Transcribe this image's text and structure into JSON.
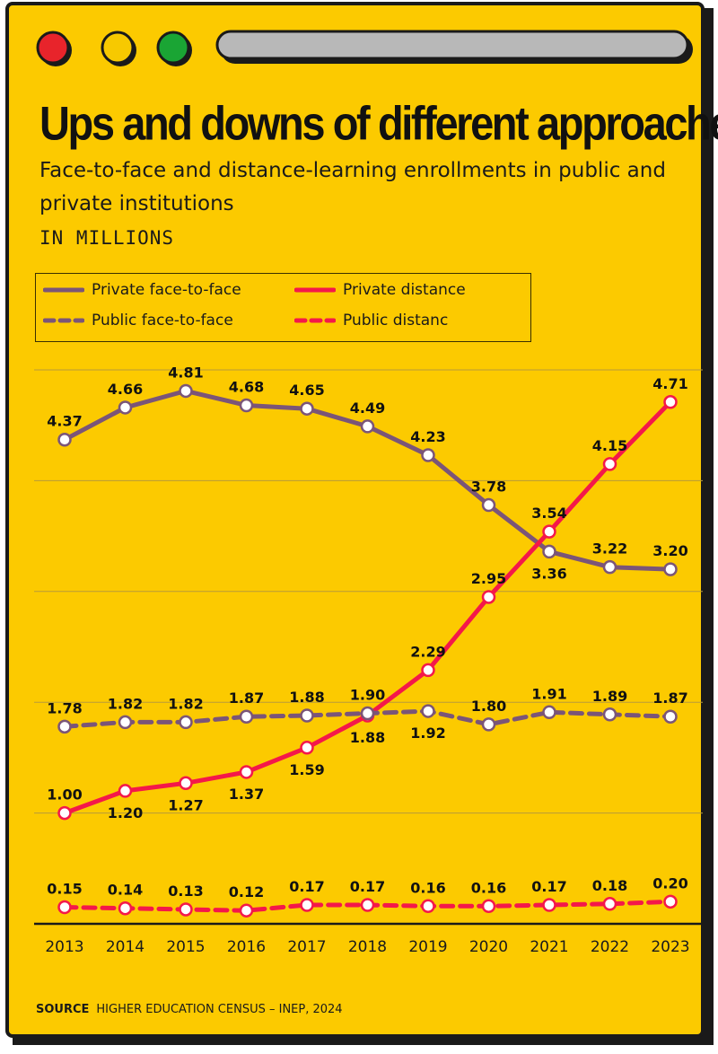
{
  "window": {
    "traffic_lights": [
      "#e8242b",
      "#f7c900",
      "#1aa534"
    ],
    "background": "#fcca00"
  },
  "title": "Ups and downs of different approaches",
  "subtitle": "Face-to-face and distance-learning enrollments in public and private institutions",
  "unit": "IN MILLIONS",
  "source": {
    "label": "SOURCE",
    "text": "HIGHER EDUCATION CENSUS – INEP, 2024"
  },
  "chart_data": {
    "type": "line",
    "x": [
      "2013",
      "2014",
      "2015",
      "2016",
      "2017",
      "2018",
      "2019",
      "2020",
      "2021",
      "2022",
      "2023"
    ],
    "ylim": [
      0,
      5
    ],
    "grid": true,
    "legend": "top-left",
    "series": [
      {
        "name": "Private face-to-face",
        "color": "#7b5578",
        "style": "solid",
        "values": [
          4.37,
          4.66,
          4.81,
          4.68,
          4.65,
          4.49,
          4.23,
          3.78,
          3.36,
          3.22,
          3.2
        ],
        "labels": [
          "4.37",
          "4.66",
          "4.81",
          "4.68",
          "4.65",
          "4.49",
          "4.23",
          "3.78",
          "3.36",
          "3.22",
          "3.20"
        ],
        "label_pos": [
          "above",
          "above",
          "above",
          "above",
          "above",
          "above",
          "above",
          "above",
          "below",
          "above",
          "above"
        ]
      },
      {
        "name": "Private distance",
        "color": "#f4184a",
        "style": "solid",
        "values": [
          1.0,
          1.2,
          1.27,
          1.37,
          1.59,
          1.88,
          2.29,
          2.95,
          3.54,
          4.15,
          4.71
        ],
        "labels": [
          "1.00",
          "1.20",
          "1.27",
          "1.37",
          "1.59",
          "1.88",
          "2.29",
          "2.95",
          "3.54",
          "4.15",
          "4.71"
        ],
        "label_pos": [
          "above",
          "below",
          "below",
          "below",
          "below",
          "below",
          "above",
          "above",
          "above",
          "above",
          "above"
        ]
      },
      {
        "name": "Public face-to-face",
        "color": "#7b5578",
        "style": "dashed",
        "values": [
          1.78,
          1.82,
          1.82,
          1.87,
          1.88,
          1.9,
          1.92,
          1.8,
          1.91,
          1.89,
          1.87
        ],
        "labels": [
          "1.78",
          "1.82",
          "1.82",
          "1.87",
          "1.88",
          "1.90",
          "1.92",
          "1.80",
          "1.91",
          "1.89",
          "1.87"
        ],
        "label_pos": [
          "above",
          "above",
          "above",
          "above",
          "above",
          "above",
          "below",
          "above",
          "above",
          "above",
          "above"
        ]
      },
      {
        "name": "Public distanc",
        "color": "#f4184a",
        "style": "dashed",
        "values": [
          0.15,
          0.14,
          0.13,
          0.12,
          0.17,
          0.17,
          0.16,
          0.16,
          0.17,
          0.18,
          0.2
        ],
        "labels": [
          "0.15",
          "0.14",
          "0.13",
          "0.12",
          "0.17",
          "0.17",
          "0.16",
          "0.16",
          "0.17",
          "0.18",
          "0.20"
        ],
        "label_pos": [
          "above",
          "above",
          "above",
          "above",
          "above",
          "above",
          "above",
          "above",
          "above",
          "above",
          "above"
        ]
      }
    ]
  }
}
